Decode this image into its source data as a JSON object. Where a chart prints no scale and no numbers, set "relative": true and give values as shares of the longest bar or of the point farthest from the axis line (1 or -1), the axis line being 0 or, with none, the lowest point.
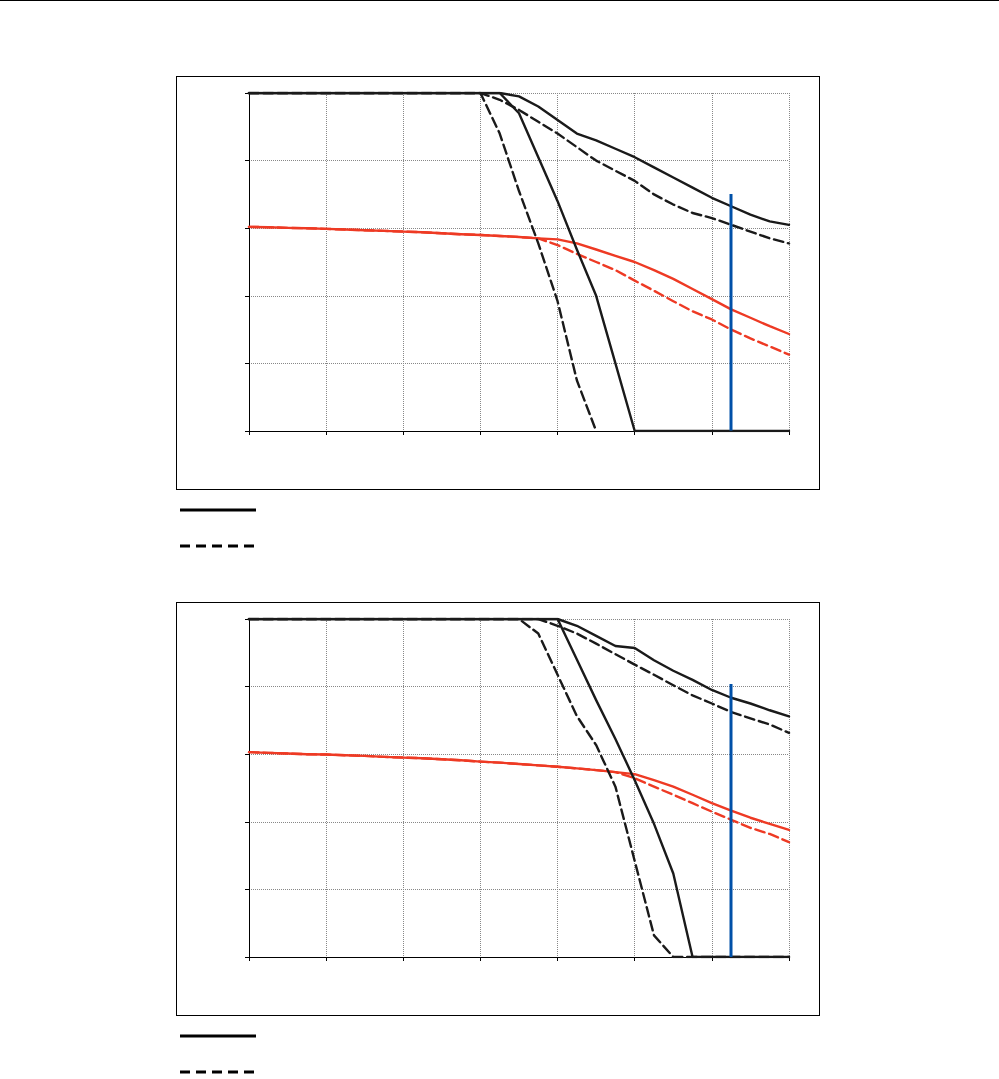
{
  "chart_data": [
    {
      "type": "line",
      "relative": true,
      "grid": true,
      "marker": "none",
      "categories": [
        null,
        null,
        null,
        null,
        null,
        null,
        null,
        null,
        null,
        null,
        null,
        null,
        null,
        null,
        null,
        null,
        null,
        null,
        null,
        null,
        null,
        null,
        null,
        null,
        null,
        null,
        null,
        null,
        null
      ],
      "series": [
        {
          "color": "#1a1a1a",
          "line_style": "solid",
          "values": [
            1,
            1,
            1,
            1,
            1,
            1,
            1,
            1,
            1,
            1,
            1,
            1,
            1,
            1,
            0.99,
            0.96,
            0.92,
            0.88,
            0.86,
            0.835,
            0.81,
            0.78,
            0.75,
            0.72,
            0.69,
            0.665,
            0.64,
            0.62,
            0.61
          ]
        },
        {
          "color": "#1a1a1a",
          "line_style": "dashed",
          "values": [
            1,
            1,
            1,
            1,
            1,
            1,
            1,
            1,
            1,
            1,
            1,
            1,
            1,
            0.98,
            0.95,
            0.915,
            0.88,
            0.84,
            0.8,
            0.77,
            0.74,
            0.7,
            0.67,
            0.645,
            0.63,
            0.61,
            0.59,
            0.57,
            0.555
          ]
        },
        {
          "color": "#ee3a24",
          "line_style": "solid",
          "values": [
            0.604,
            0.603,
            0.601,
            0.6,
            0.598,
            0.596,
            0.594,
            0.592,
            0.59,
            0.588,
            0.585,
            0.582,
            0.58,
            0.577,
            0.574,
            0.57,
            0.567,
            0.555,
            0.537,
            0.518,
            0.5,
            0.476,
            0.45,
            0.42,
            0.39,
            0.36,
            0.335,
            0.31,
            0.287
          ]
        },
        {
          "color": "#ee3a24",
          "line_style": "dashed",
          "values": [
            0.604,
            0.603,
            0.601,
            0.6,
            0.598,
            0.596,
            0.594,
            0.592,
            0.59,
            0.588,
            0.585,
            0.582,
            0.58,
            0.577,
            0.574,
            0.57,
            0.55,
            0.524,
            0.5,
            0.476,
            0.445,
            0.415,
            0.384,
            0.354,
            0.33,
            0.3,
            0.274,
            0.25,
            0.226
          ]
        },
        {
          "color": "#1a1a1a",
          "line_style": "solid",
          "values": [
            1,
            1,
            1,
            1,
            1,
            1,
            1,
            1,
            1,
            1,
            1,
            1,
            1,
            1,
            0.94,
            0.81,
            0.68,
            0.537,
            0.4,
            0.2,
            0,
            0,
            0,
            0,
            0,
            0,
            0,
            0,
            0
          ]
        },
        {
          "color": "#1a1a1a",
          "line_style": "dashed",
          "values": [
            1,
            1,
            1,
            1,
            1,
            1,
            1,
            1,
            1,
            1,
            1,
            1,
            1,
            0.88,
            0.71,
            0.555,
            0.384,
            0.15,
            0,
            null,
            null,
            null,
            null,
            null,
            null,
            null,
            null,
            null,
            null
          ]
        }
      ]
    },
    {
      "type": "line",
      "relative": true,
      "grid": true,
      "marker": "none",
      "categories": [
        null,
        null,
        null,
        null,
        null,
        null,
        null,
        null,
        null,
        null,
        null,
        null,
        null,
        null,
        null,
        null,
        null,
        null,
        null,
        null,
        null,
        null,
        null,
        null,
        null,
        null,
        null,
        null,
        null
      ],
      "series": [
        {
          "color": "#1a1a1a",
          "line_style": "solid",
          "values": [
            1,
            1,
            1,
            1,
            1,
            1,
            1,
            1,
            1,
            1,
            1,
            1,
            1,
            1,
            1,
            1,
            1,
            0.98,
            0.95,
            0.92,
            0.914,
            0.878,
            0.847,
            0.82,
            0.79,
            0.767,
            0.75,
            0.73,
            0.712
          ]
        },
        {
          "color": "#1a1a1a",
          "line_style": "dashed",
          "values": [
            1,
            1,
            1,
            1,
            1,
            1,
            1,
            1,
            1,
            1,
            1,
            1,
            1,
            1,
            1,
            1,
            0.98,
            0.957,
            0.927,
            0.896,
            0.865,
            0.835,
            0.804,
            0.774,
            0.75,
            0.725,
            0.706,
            0.688,
            0.663
          ]
        },
        {
          "color": "#ee3a24",
          "line_style": "solid",
          "values": [
            0.606,
            0.604,
            0.602,
            0.6,
            0.599,
            0.597,
            0.595,
            0.592,
            0.59,
            0.588,
            0.585,
            0.582,
            0.578,
            0.575,
            0.571,
            0.567,
            0.563,
            0.558,
            0.553,
            0.547,
            0.541,
            0.523,
            0.504,
            0.48,
            0.455,
            0.433,
            0.412,
            0.394,
            0.376
          ]
        },
        {
          "color": "#ee3a24",
          "line_style": "dashed",
          "values": [
            0.606,
            0.604,
            0.602,
            0.6,
            0.599,
            0.597,
            0.595,
            0.592,
            0.59,
            0.588,
            0.585,
            0.582,
            0.578,
            0.575,
            0.571,
            0.567,
            0.563,
            0.558,
            0.553,
            0.547,
            0.529,
            0.504,
            0.48,
            0.455,
            0.43,
            0.406,
            0.382,
            0.364,
            0.34
          ]
        },
        {
          "color": "#1a1a1a",
          "line_style": "solid",
          "values": [
            1,
            1,
            1,
            1,
            1,
            1,
            1,
            1,
            1,
            1,
            1,
            1,
            1,
            1,
            1,
            1,
            1,
            0.88,
            0.76,
            0.645,
            0.523,
            0.394,
            0.247,
            0,
            0,
            0,
            0,
            0,
            0
          ]
        },
        {
          "color": "#1a1a1a",
          "line_style": "dashed",
          "values": [
            1,
            1,
            1,
            1,
            1,
            1,
            1,
            1,
            1,
            1,
            1,
            1,
            1,
            1,
            1,
            0.957,
            0.835,
            0.713,
            0.627,
            0.504,
            0.284,
            0.064,
            0,
            0,
            0,
            0,
            0,
            0,
            0
          ]
        }
      ]
    }
  ]
}
